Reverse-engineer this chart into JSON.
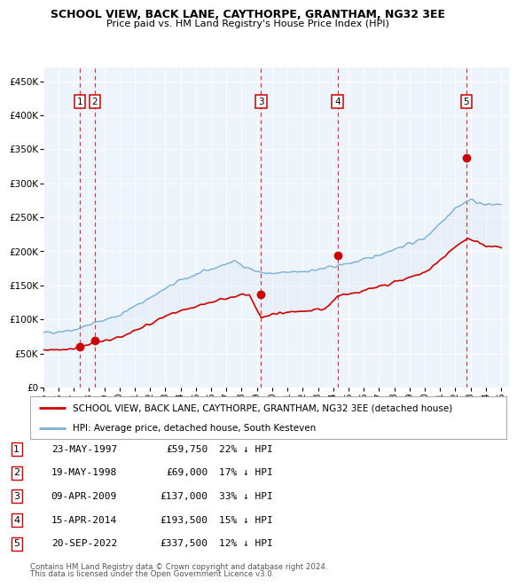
{
  "title": "SCHOOL VIEW, BACK LANE, CAYTHORPE, GRANTHAM, NG32 3EE",
  "subtitle": "Price paid vs. HM Land Registry's House Price Index (HPI)",
  "ylim": [
    0,
    470000
  ],
  "yticks": [
    0,
    50000,
    100000,
    150000,
    200000,
    250000,
    300000,
    350000,
    400000,
    450000
  ],
  "ytick_labels": [
    "£0",
    "£50K",
    "£100K",
    "£150K",
    "£200K",
    "£250K",
    "£300K",
    "£350K",
    "£400K",
    "£450K"
  ],
  "xlim_start": 1995.0,
  "xlim_end": 2025.5,
  "sale_dates": [
    1997.39,
    1998.38,
    2009.27,
    2014.29,
    2022.72
  ],
  "sale_prices": [
    59750,
    69000,
    137000,
    193500,
    337500
  ],
  "sale_labels": [
    "1",
    "2",
    "3",
    "4",
    "5"
  ],
  "sale_info": [
    {
      "label": "1",
      "date": "23-MAY-1997",
      "price": "£59,750",
      "pct": "22%"
    },
    {
      "label": "2",
      "date": "19-MAY-1998",
      "price": "£69,000",
      "pct": "17%"
    },
    {
      "label": "3",
      "date": "09-APR-2009",
      "price": "£137,000",
      "pct": "33%"
    },
    {
      "label": "4",
      "date": "15-APR-2014",
      "price": "£193,500",
      "pct": "15%"
    },
    {
      "label": "5",
      "date": "20-SEP-2022",
      "price": "£337,500",
      "pct": "12%"
    }
  ],
  "hpi_color": "#7bafd4",
  "hpi_fill_color": "#daeaf5",
  "sale_color": "#cc0000",
  "dashed_color": "#cc0000",
  "background_color": "#ffffff",
  "chart_bg_color": "#eef4fb",
  "legend_label_red": "SCHOOL VIEW, BACK LANE, CAYTHORPE, GRANTHAM, NG32 3EE (detached house)",
  "legend_label_blue": "HPI: Average price, detached house, South Kesteven",
  "footer1": "Contains HM Land Registry data © Crown copyright and database right 2024.",
  "footer2": "This data is licensed under the Open Government Licence v3.0."
}
